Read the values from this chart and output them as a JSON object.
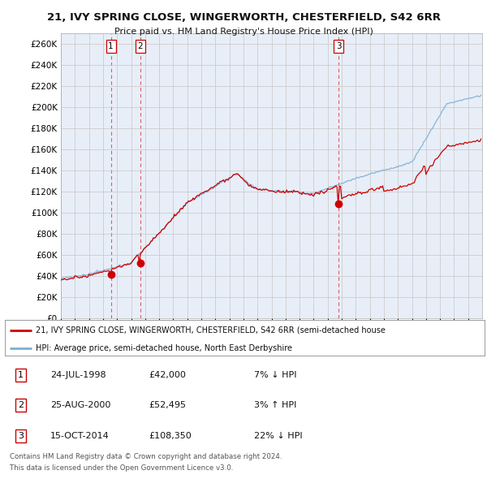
{
  "title1": "21, IVY SPRING CLOSE, WINGERWORTH, CHESTERFIELD, S42 6RR",
  "title2": "Price paid vs. HM Land Registry's House Price Index (HPI)",
  "ylabel_vals": [
    0,
    20000,
    40000,
    60000,
    80000,
    100000,
    120000,
    140000,
    160000,
    180000,
    200000,
    220000,
    240000,
    260000
  ],
  "ylim": [
    0,
    270000
  ],
  "xlim_start": 1995.0,
  "xlim_end": 2025.0,
  "sale_dates": [
    1998.56,
    2000.65,
    2014.79
  ],
  "sale_prices": [
    42000,
    52495,
    108350
  ],
  "sale_labels": [
    "1",
    "2",
    "3"
  ],
  "legend_line1": "21, IVY SPRING CLOSE, WINGERWORTH, CHESTERFIELD, S42 6RR (semi-detached house",
  "legend_line2": "HPI: Average price, semi-detached house, North East Derbyshire",
  "table_rows": [
    [
      "1",
      "24-JUL-1998",
      "£42,000",
      "7% ↓ HPI"
    ],
    [
      "2",
      "25-AUG-2000",
      "£52,495",
      "3% ↑ HPI"
    ],
    [
      "3",
      "15-OCT-2014",
      "£108,350",
      "22% ↓ HPI"
    ]
  ],
  "footnote1": "Contains HM Land Registry data © Crown copyright and database right 2024.",
  "footnote2": "This data is licensed under the Open Government Licence v3.0.",
  "line_color_red": "#cc0000",
  "line_color_blue": "#7bafd4",
  "bg_color": "#ffffff",
  "grid_color": "#cccccc",
  "plot_bg": "#e8eef8"
}
